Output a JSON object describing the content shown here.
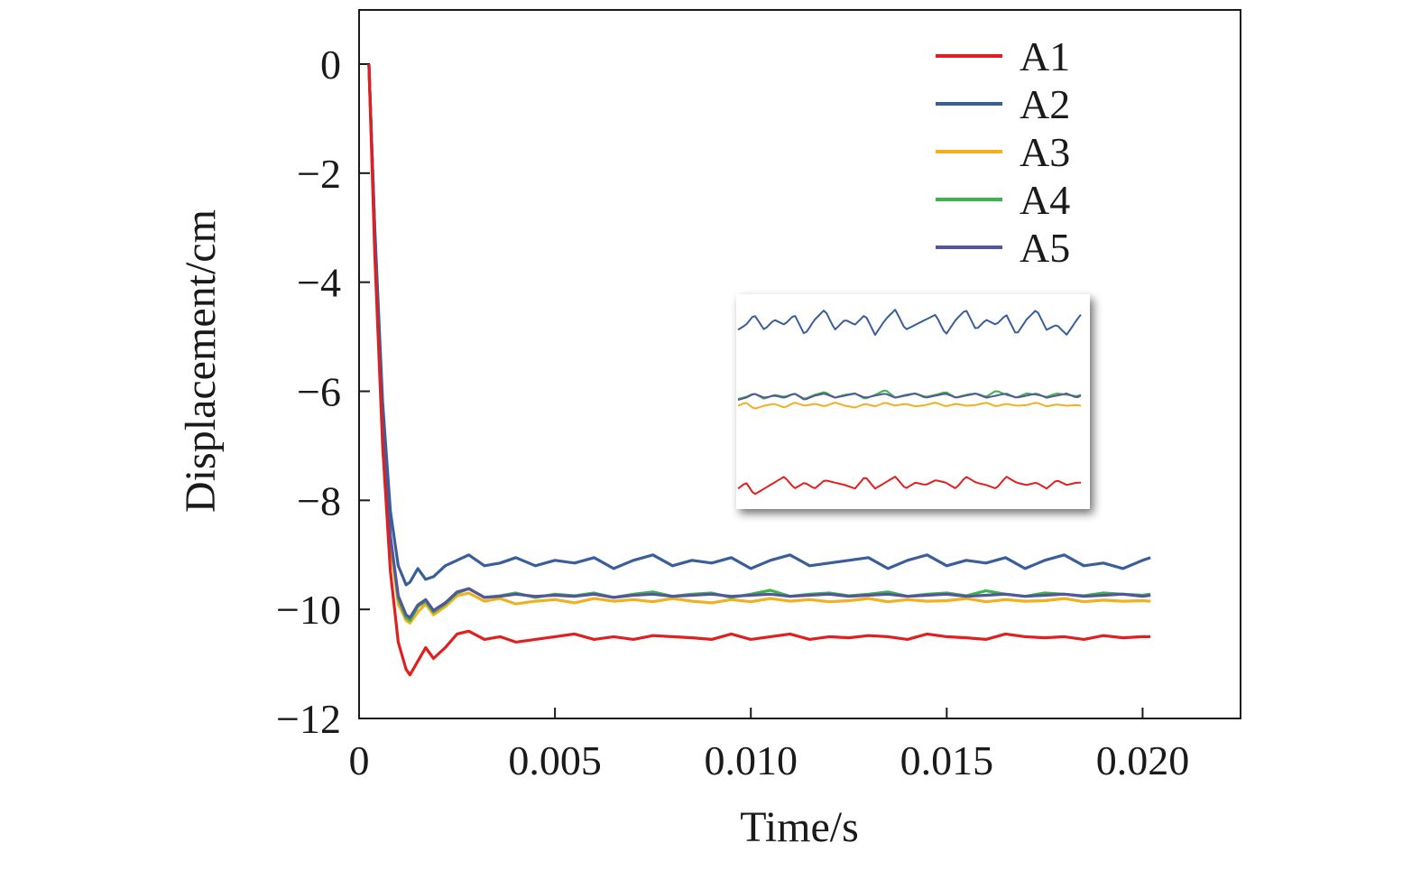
{
  "chart_data": {
    "type": "line",
    "title": "",
    "xlabel": "Time/s",
    "ylabel": "Displacement/cm",
    "xlim": [
      0,
      0.0225
    ],
    "ylim": [
      -12,
      1
    ],
    "x_ticks": [
      0,
      0.005,
      0.01,
      0.015,
      0.02
    ],
    "x_tick_labels": [
      "0",
      "0.005",
      "0.010",
      "0.015",
      "0.020"
    ],
    "y_ticks": [
      0,
      -2,
      -4,
      -6,
      -8,
      -10,
      -12
    ],
    "y_tick_labels": [
      "0",
      "−2",
      "−4",
      "−6",
      "−8",
      "−10",
      "−12"
    ],
    "grid": false,
    "legend_position": "top-right",
    "inset": "zoomed view of steady-state oscillations of all five series",
    "series": [
      {
        "name": "A1",
        "color": "#e02020",
        "x": [
          0.00025,
          0.0004,
          0.0006,
          0.0008,
          0.001,
          0.0012,
          0.0013,
          0.0015,
          0.0017,
          0.0019,
          0.0022,
          0.0025,
          0.0028,
          0.0032,
          0.0036,
          0.004,
          0.0045,
          0.005,
          0.0055,
          0.006,
          0.0065,
          0.007,
          0.0075,
          0.008,
          0.0085,
          0.009,
          0.0095,
          0.01,
          0.0105,
          0.011,
          0.0115,
          0.012,
          0.0125,
          0.013,
          0.0135,
          0.014,
          0.0145,
          0.015,
          0.0155,
          0.016,
          0.0165,
          0.017,
          0.0175,
          0.018,
          0.0185,
          0.019,
          0.0195,
          0.02,
          0.0202
        ],
        "y": [
          0.0,
          -3.5,
          -7.0,
          -9.3,
          -10.6,
          -11.1,
          -11.2,
          -10.95,
          -10.7,
          -10.9,
          -10.7,
          -10.45,
          -10.4,
          -10.55,
          -10.5,
          -10.6,
          -10.55,
          -10.5,
          -10.45,
          -10.55,
          -10.5,
          -10.55,
          -10.48,
          -10.5,
          -10.52,
          -10.55,
          -10.45,
          -10.55,
          -10.5,
          -10.45,
          -10.55,
          -10.5,
          -10.52,
          -10.48,
          -10.5,
          -10.55,
          -10.45,
          -10.5,
          -10.52,
          -10.55,
          -10.45,
          -10.5,
          -10.52,
          -10.5,
          -10.55,
          -10.48,
          -10.52,
          -10.5,
          -10.5
        ]
      },
      {
        "name": "A2",
        "color": "#3a5e9c",
        "x": [
          0.00025,
          0.0004,
          0.0006,
          0.0008,
          0.001,
          0.0012,
          0.0013,
          0.0015,
          0.0017,
          0.0019,
          0.0022,
          0.0025,
          0.0028,
          0.0032,
          0.0036,
          0.004,
          0.0045,
          0.005,
          0.0055,
          0.006,
          0.0065,
          0.007,
          0.0075,
          0.008,
          0.0085,
          0.009,
          0.0095,
          0.01,
          0.0105,
          0.011,
          0.0115,
          0.012,
          0.0125,
          0.013,
          0.0135,
          0.014,
          0.0145,
          0.015,
          0.0155,
          0.016,
          0.0165,
          0.017,
          0.0175,
          0.018,
          0.0185,
          0.019,
          0.0195,
          0.02,
          0.0202
        ],
        "y": [
          0.0,
          -3.0,
          -6.2,
          -8.2,
          -9.2,
          -9.55,
          -9.5,
          -9.25,
          -9.45,
          -9.4,
          -9.2,
          -9.1,
          -9.0,
          -9.2,
          -9.15,
          -9.05,
          -9.2,
          -9.1,
          -9.15,
          -9.05,
          -9.25,
          -9.1,
          -9.0,
          -9.2,
          -9.1,
          -9.15,
          -9.05,
          -9.25,
          -9.1,
          -9.0,
          -9.2,
          -9.15,
          -9.1,
          -9.05,
          -9.25,
          -9.1,
          -9.0,
          -9.2,
          -9.1,
          -9.15,
          -9.05,
          -9.25,
          -9.1,
          -9.0,
          -9.2,
          -9.15,
          -9.25,
          -9.1,
          -9.05
        ]
      },
      {
        "name": "A3",
        "color": "#f0b020",
        "x": [
          0.00025,
          0.0004,
          0.0006,
          0.0008,
          0.001,
          0.0012,
          0.0013,
          0.0015,
          0.0017,
          0.0019,
          0.0022,
          0.0025,
          0.0028,
          0.0032,
          0.0036,
          0.004,
          0.0045,
          0.005,
          0.0055,
          0.006,
          0.0065,
          0.007,
          0.0075,
          0.008,
          0.0085,
          0.009,
          0.0095,
          0.01,
          0.0105,
          0.011,
          0.0115,
          0.012,
          0.0125,
          0.013,
          0.0135,
          0.014,
          0.0145,
          0.015,
          0.0155,
          0.016,
          0.0165,
          0.017,
          0.0175,
          0.018,
          0.0185,
          0.019,
          0.0195,
          0.02,
          0.0202
        ],
        "y": [
          0.0,
          -3.2,
          -6.6,
          -8.8,
          -9.9,
          -10.2,
          -10.25,
          -10.05,
          -9.9,
          -10.1,
          -9.95,
          -9.75,
          -9.7,
          -9.85,
          -9.8,
          -9.9,
          -9.85,
          -9.82,
          -9.88,
          -9.8,
          -9.85,
          -9.82,
          -9.86,
          -9.8,
          -9.85,
          -9.88,
          -9.82,
          -9.86,
          -9.8,
          -9.85,
          -9.82,
          -9.86,
          -9.84,
          -9.8,
          -9.86,
          -9.82,
          -9.85,
          -9.84,
          -9.8,
          -9.86,
          -9.82,
          -9.85,
          -9.84,
          -9.8,
          -9.86,
          -9.83,
          -9.85,
          -9.84,
          -9.85
        ]
      },
      {
        "name": "A4",
        "color": "#3cb44b",
        "x": [
          0.00025,
          0.0004,
          0.0006,
          0.0008,
          0.001,
          0.0012,
          0.0013,
          0.0015,
          0.0017,
          0.0019,
          0.0022,
          0.0025,
          0.0028,
          0.0032,
          0.0036,
          0.004,
          0.0045,
          0.005,
          0.0055,
          0.006,
          0.0065,
          0.007,
          0.0075,
          0.008,
          0.0085,
          0.009,
          0.0095,
          0.01,
          0.0105,
          0.011,
          0.0115,
          0.012,
          0.0125,
          0.013,
          0.0135,
          0.014,
          0.0145,
          0.015,
          0.0155,
          0.016,
          0.0165,
          0.017,
          0.0175,
          0.018,
          0.0185,
          0.019,
          0.0195,
          0.02,
          0.0202
        ],
        "y": [
          0.0,
          -3.1,
          -6.5,
          -8.7,
          -9.8,
          -10.15,
          -10.2,
          -9.95,
          -9.85,
          -10.05,
          -9.9,
          -9.7,
          -9.62,
          -9.78,
          -9.75,
          -9.7,
          -9.78,
          -9.72,
          -9.75,
          -9.7,
          -9.78,
          -9.72,
          -9.68,
          -9.76,
          -9.72,
          -9.7,
          -9.78,
          -9.72,
          -9.65,
          -9.76,
          -9.72,
          -9.7,
          -9.75,
          -9.72,
          -9.68,
          -9.76,
          -9.72,
          -9.7,
          -9.75,
          -9.66,
          -9.72,
          -9.76,
          -9.7,
          -9.72,
          -9.75,
          -9.7,
          -9.72,
          -9.74,
          -9.72
        ]
      },
      {
        "name": "A5",
        "color": "#55559a",
        "x": [
          0.00025,
          0.0004,
          0.0006,
          0.0008,
          0.001,
          0.0012,
          0.0013,
          0.0015,
          0.0017,
          0.0019,
          0.0022,
          0.0025,
          0.0028,
          0.0032,
          0.0036,
          0.004,
          0.0045,
          0.005,
          0.0055,
          0.006,
          0.0065,
          0.007,
          0.0075,
          0.008,
          0.0085,
          0.009,
          0.0095,
          0.01,
          0.0105,
          0.011,
          0.0115,
          0.012,
          0.0125,
          0.013,
          0.0135,
          0.014,
          0.0145,
          0.015,
          0.0155,
          0.016,
          0.0165,
          0.017,
          0.0175,
          0.018,
          0.0185,
          0.019,
          0.0195,
          0.02,
          0.0202
        ],
        "y": [
          0.0,
          -3.1,
          -6.4,
          -8.65,
          -9.75,
          -10.1,
          -10.15,
          -9.92,
          -9.82,
          -10.02,
          -9.88,
          -9.68,
          -9.62,
          -9.78,
          -9.76,
          -9.72,
          -9.76,
          -9.74,
          -9.76,
          -9.72,
          -9.78,
          -9.74,
          -9.72,
          -9.76,
          -9.74,
          -9.72,
          -9.76,
          -9.74,
          -9.72,
          -9.76,
          -9.74,
          -9.72,
          -9.76,
          -9.74,
          -9.72,
          -9.76,
          -9.74,
          -9.72,
          -9.76,
          -9.74,
          -9.72,
          -9.76,
          -9.74,
          -9.72,
          -9.76,
          -9.74,
          -9.72,
          -9.76,
          -9.74
        ]
      }
    ]
  }
}
